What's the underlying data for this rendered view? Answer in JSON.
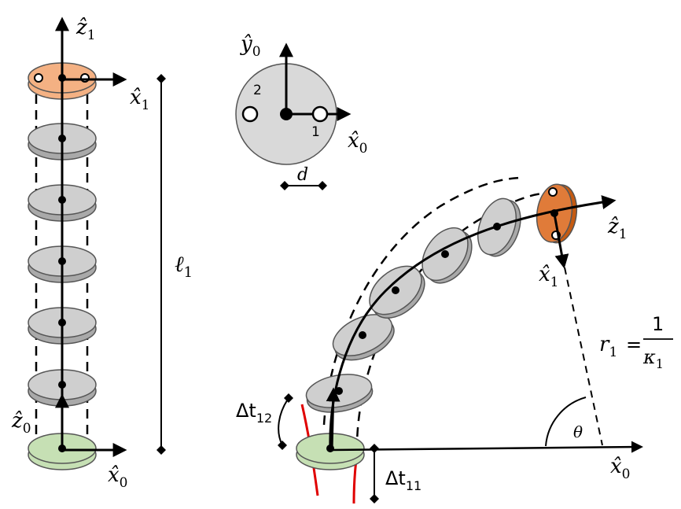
{
  "colors": {
    "disk_gray": "#cfcfcf",
    "disk_gray_dark": "#a9a9a9",
    "base_green": "#c6e0b4",
    "tip_orange_light": "#f4b183",
    "tip_orange_dark": "#c55a11",
    "tendon_red": "#e00000",
    "ink": "#000000"
  },
  "left_stack": {
    "axis_z1": "ẑ",
    "axis_z1_sub": "1",
    "axis_x1": "x̂",
    "axis_x1_sub": "1",
    "axis_z0": "ẑ",
    "axis_z0_sub": "0",
    "axis_x0": "x̂",
    "axis_x0_sub": "0",
    "length_label": "ℓ",
    "length_sub": "1"
  },
  "cross_section": {
    "axis_y0": "ŷ",
    "axis_y0_sub": "0",
    "axis_x0": "x̂",
    "axis_x0_sub": "0",
    "hole_1_label": "1",
    "hole_2_label": "2",
    "spacing_label": "d"
  },
  "bent_stack": {
    "axis_z1": "ẑ",
    "axis_z1_sub": "1",
    "axis_x1": "x̂",
    "axis_x1_sub": "1",
    "axis_x0": "x̂",
    "axis_x0_sub": "0",
    "radius_lhs": "r",
    "radius_lhs_sub": "1",
    "radius_eq": "=",
    "radius_num": "1",
    "radius_den": "κ",
    "radius_den_sub": "1",
    "angle_label": "θ",
    "dt12_prefix": "Δt",
    "dt12_sub": "12",
    "dt11_prefix": "Δt",
    "dt11_sub": "11"
  }
}
